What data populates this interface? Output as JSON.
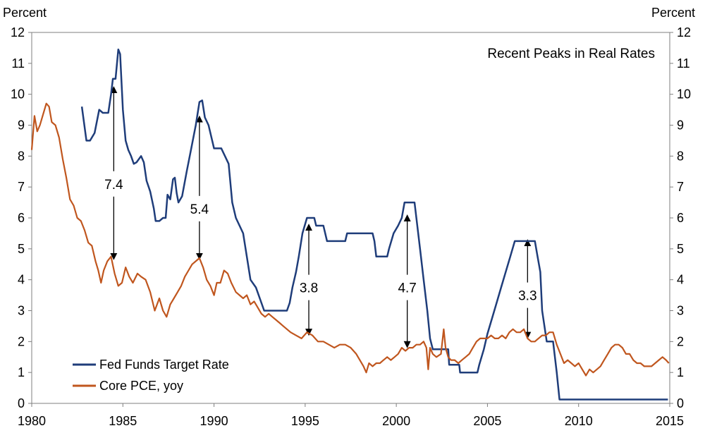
{
  "chart_data": {
    "type": "line",
    "title": "Recent Peaks in Real Rates",
    "ylabel_left": "Percent",
    "ylabel_right": "Percent",
    "xlim": [
      1980,
      2015
    ],
    "ylim": [
      0,
      12
    ],
    "x_ticks": [
      "1980",
      "1985",
      "1990",
      "1995",
      "2000",
      "2005",
      "2010",
      "2015"
    ],
    "y_ticks": [
      "0",
      "1",
      "2",
      "3",
      "4",
      "5",
      "6",
      "7",
      "8",
      "9",
      "10",
      "11",
      "12"
    ],
    "legend_position": "bottom-left",
    "series": [
      {
        "name": "Fed Funds Target Rate",
        "color": "#1F3D7A",
        "points": [
          [
            1982.75,
            9.6
          ],
          [
            1983.0,
            8.5
          ],
          [
            1983.2,
            8.5
          ],
          [
            1983.45,
            8.75
          ],
          [
            1983.7,
            9.5
          ],
          [
            1983.9,
            9.4
          ],
          [
            1984.2,
            9.4
          ],
          [
            1984.35,
            10.0
          ],
          [
            1984.45,
            10.5
          ],
          [
            1984.6,
            10.5
          ],
          [
            1984.75,
            11.45
          ],
          [
            1984.85,
            11.3
          ],
          [
            1985.0,
            9.5
          ],
          [
            1985.15,
            8.5
          ],
          [
            1985.3,
            8.2
          ],
          [
            1985.45,
            8.0
          ],
          [
            1985.6,
            7.75
          ],
          [
            1985.75,
            7.8
          ],
          [
            1986.0,
            8.0
          ],
          [
            1986.15,
            7.8
          ],
          [
            1986.3,
            7.2
          ],
          [
            1986.5,
            6.85
          ],
          [
            1986.7,
            6.3
          ],
          [
            1986.8,
            5.9
          ],
          [
            1987.0,
            5.9
          ],
          [
            1987.2,
            6.0
          ],
          [
            1987.35,
            6.0
          ],
          [
            1987.45,
            6.75
          ],
          [
            1987.6,
            6.6
          ],
          [
            1987.75,
            7.25
          ],
          [
            1987.85,
            7.3
          ],
          [
            1987.95,
            6.8
          ],
          [
            1988.05,
            6.5
          ],
          [
            1988.25,
            6.7
          ],
          [
            1988.5,
            7.5
          ],
          [
            1988.75,
            8.25
          ],
          [
            1989.0,
            9.0
          ],
          [
            1989.2,
            9.75
          ],
          [
            1989.35,
            9.8
          ],
          [
            1989.5,
            9.25
          ],
          [
            1989.7,
            9.0
          ],
          [
            1989.9,
            8.5
          ],
          [
            1990.0,
            8.25
          ],
          [
            1990.4,
            8.25
          ],
          [
            1990.6,
            8.0
          ],
          [
            1990.8,
            7.75
          ],
          [
            1991.0,
            6.5
          ],
          [
            1991.2,
            6.0
          ],
          [
            1991.4,
            5.75
          ],
          [
            1991.6,
            5.5
          ],
          [
            1991.8,
            4.75
          ],
          [
            1992.0,
            4.0
          ],
          [
            1992.3,
            3.75
          ],
          [
            1992.6,
            3.25
          ],
          [
            1992.75,
            3.0
          ],
          [
            1994.0,
            3.0
          ],
          [
            1994.15,
            3.25
          ],
          [
            1994.3,
            3.75
          ],
          [
            1994.5,
            4.25
          ],
          [
            1994.65,
            4.75
          ],
          [
            1994.85,
            5.5
          ],
          [
            1995.1,
            6.0
          ],
          [
            1995.5,
            6.0
          ],
          [
            1995.6,
            5.75
          ],
          [
            1996.0,
            5.75
          ],
          [
            1996.1,
            5.5
          ],
          [
            1996.2,
            5.25
          ],
          [
            1997.2,
            5.25
          ],
          [
            1997.3,
            5.5
          ],
          [
            1998.7,
            5.5
          ],
          [
            1998.8,
            5.25
          ],
          [
            1998.9,
            4.75
          ],
          [
            1999.5,
            4.75
          ],
          [
            1999.6,
            5.0
          ],
          [
            1999.85,
            5.5
          ],
          [
            2000.1,
            5.75
          ],
          [
            2000.3,
            6.0
          ],
          [
            2000.45,
            6.5
          ],
          [
            2001.0,
            6.5
          ],
          [
            2001.1,
            6.0
          ],
          [
            2001.3,
            5.0
          ],
          [
            2001.5,
            4.0
          ],
          [
            2001.7,
            3.0
          ],
          [
            2001.85,
            2.1
          ],
          [
            2002.0,
            1.75
          ],
          [
            2002.85,
            1.75
          ],
          [
            2002.9,
            1.25
          ],
          [
            2003.45,
            1.25
          ],
          [
            2003.5,
            1.0
          ],
          [
            2004.45,
            1.0
          ],
          [
            2004.55,
            1.25
          ],
          [
            2004.8,
            1.75
          ],
          [
            2005.0,
            2.25
          ],
          [
            2005.25,
            2.75
          ],
          [
            2005.5,
            3.25
          ],
          [
            2005.75,
            3.75
          ],
          [
            2006.0,
            4.25
          ],
          [
            2006.25,
            4.75
          ],
          [
            2006.5,
            5.25
          ],
          [
            2007.6,
            5.25
          ],
          [
            2007.75,
            4.75
          ],
          [
            2007.9,
            4.25
          ],
          [
            2008.0,
            3.0
          ],
          [
            2008.25,
            2.0
          ],
          [
            2008.6,
            2.0
          ],
          [
            2008.8,
            1.0
          ],
          [
            2008.95,
            0.125
          ],
          [
            2014.9,
            0.125
          ]
        ]
      },
      {
        "name": "Core PCE, yoy",
        "color": "#C0561E",
        "points": [
          [
            1980.0,
            8.2
          ],
          [
            1980.15,
            9.3
          ],
          [
            1980.3,
            8.8
          ],
          [
            1980.45,
            9.0
          ],
          [
            1980.6,
            9.3
          ],
          [
            1980.8,
            9.7
          ],
          [
            1980.95,
            9.6
          ],
          [
            1981.1,
            9.1
          ],
          [
            1981.3,
            9.0
          ],
          [
            1981.5,
            8.6
          ],
          [
            1981.7,
            7.9
          ],
          [
            1981.9,
            7.3
          ],
          [
            1982.1,
            6.6
          ],
          [
            1982.3,
            6.4
          ],
          [
            1982.5,
            6.0
          ],
          [
            1982.7,
            5.9
          ],
          [
            1982.9,
            5.6
          ],
          [
            1983.1,
            5.2
          ],
          [
            1983.3,
            5.1
          ],
          [
            1983.5,
            4.6
          ],
          [
            1983.65,
            4.3
          ],
          [
            1983.8,
            3.9
          ],
          [
            1983.95,
            4.3
          ],
          [
            1984.15,
            4.6
          ],
          [
            1984.35,
            4.75
          ],
          [
            1984.55,
            4.2
          ],
          [
            1984.75,
            3.8
          ],
          [
            1984.95,
            3.9
          ],
          [
            1985.15,
            4.4
          ],
          [
            1985.35,
            4.1
          ],
          [
            1985.55,
            3.9
          ],
          [
            1985.8,
            4.2
          ],
          [
            1986.0,
            4.1
          ],
          [
            1986.25,
            4.0
          ],
          [
            1986.5,
            3.6
          ],
          [
            1986.75,
            3.0
          ],
          [
            1987.0,
            3.4
          ],
          [
            1987.2,
            3.0
          ],
          [
            1987.4,
            2.8
          ],
          [
            1987.6,
            3.2
          ],
          [
            1987.8,
            3.4
          ],
          [
            1988.0,
            3.6
          ],
          [
            1988.2,
            3.8
          ],
          [
            1988.4,
            4.1
          ],
          [
            1988.6,
            4.3
          ],
          [
            1988.8,
            4.5
          ],
          [
            1989.0,
            4.6
          ],
          [
            1989.2,
            4.7
          ],
          [
            1989.4,
            4.4
          ],
          [
            1989.6,
            4.0
          ],
          [
            1989.8,
            3.8
          ],
          [
            1990.0,
            3.5
          ],
          [
            1990.15,
            3.9
          ],
          [
            1990.35,
            3.9
          ],
          [
            1990.55,
            4.3
          ],
          [
            1990.75,
            4.2
          ],
          [
            1990.95,
            3.9
          ],
          [
            1991.2,
            3.6
          ],
          [
            1991.4,
            3.5
          ],
          [
            1991.6,
            3.4
          ],
          [
            1991.8,
            3.5
          ],
          [
            1992.0,
            3.2
          ],
          [
            1992.2,
            3.3
          ],
          [
            1992.4,
            3.1
          ],
          [
            1992.6,
            2.9
          ],
          [
            1992.8,
            2.8
          ],
          [
            1993.0,
            2.9
          ],
          [
            1993.2,
            2.8
          ],
          [
            1993.4,
            2.7
          ],
          [
            1993.6,
            2.6
          ],
          [
            1993.8,
            2.5
          ],
          [
            1994.0,
            2.4
          ],
          [
            1994.2,
            2.3
          ],
          [
            1994.5,
            2.2
          ],
          [
            1994.8,
            2.1
          ],
          [
            1995.1,
            2.3
          ],
          [
            1995.4,
            2.2
          ],
          [
            1995.7,
            2.0
          ],
          [
            1996.0,
            2.0
          ],
          [
            1996.3,
            1.9
          ],
          [
            1996.6,
            1.8
          ],
          [
            1996.9,
            1.9
          ],
          [
            1997.2,
            1.9
          ],
          [
            1997.5,
            1.8
          ],
          [
            1997.8,
            1.6
          ],
          [
            1998.0,
            1.4
          ],
          [
            1998.2,
            1.2
          ],
          [
            1998.35,
            1.0
          ],
          [
            1998.5,
            1.3
          ],
          [
            1998.7,
            1.2
          ],
          [
            1998.9,
            1.3
          ],
          [
            1999.1,
            1.3
          ],
          [
            1999.3,
            1.4
          ],
          [
            1999.5,
            1.5
          ],
          [
            1999.7,
            1.4
          ],
          [
            1999.9,
            1.5
          ],
          [
            2000.1,
            1.6
          ],
          [
            2000.3,
            1.8
          ],
          [
            2000.5,
            1.7
          ],
          [
            2000.7,
            1.8
          ],
          [
            2000.9,
            1.8
          ],
          [
            2001.1,
            1.9
          ],
          [
            2001.3,
            1.9
          ],
          [
            2001.5,
            2.0
          ],
          [
            2001.65,
            1.8
          ],
          [
            2001.75,
            1.1
          ],
          [
            2001.85,
            1.8
          ],
          [
            2002.0,
            1.6
          ],
          [
            2002.2,
            1.5
          ],
          [
            2002.45,
            1.6
          ],
          [
            2002.6,
            2.4
          ],
          [
            2002.7,
            1.8
          ],
          [
            2002.85,
            1.5
          ],
          [
            2003.0,
            1.4
          ],
          [
            2003.2,
            1.4
          ],
          [
            2003.4,
            1.3
          ],
          [
            2003.6,
            1.4
          ],
          [
            2003.8,
            1.5
          ],
          [
            2004.0,
            1.6
          ],
          [
            2004.2,
            1.8
          ],
          [
            2004.4,
            2.0
          ],
          [
            2004.6,
            2.1
          ],
          [
            2004.8,
            2.1
          ],
          [
            2005.0,
            2.1
          ],
          [
            2005.2,
            2.2
          ],
          [
            2005.4,
            2.1
          ],
          [
            2005.6,
            2.1
          ],
          [
            2005.8,
            2.2
          ],
          [
            2006.0,
            2.1
          ],
          [
            2006.2,
            2.3
          ],
          [
            2006.4,
            2.4
          ],
          [
            2006.6,
            2.3
          ],
          [
            2006.8,
            2.3
          ],
          [
            2007.0,
            2.4
          ],
          [
            2007.2,
            2.1
          ],
          [
            2007.4,
            2.0
          ],
          [
            2007.6,
            2.0
          ],
          [
            2007.8,
            2.1
          ],
          [
            2008.0,
            2.2
          ],
          [
            2008.2,
            2.2
          ],
          [
            2008.4,
            2.3
          ],
          [
            2008.6,
            2.3
          ],
          [
            2008.8,
            1.9
          ],
          [
            2009.0,
            1.6
          ],
          [
            2009.2,
            1.3
          ],
          [
            2009.4,
            1.4
          ],
          [
            2009.6,
            1.3
          ],
          [
            2009.8,
            1.2
          ],
          [
            2010.0,
            1.3
          ],
          [
            2010.2,
            1.1
          ],
          [
            2010.4,
            0.9
          ],
          [
            2010.6,
            1.1
          ],
          [
            2010.8,
            1.0
          ],
          [
            2011.0,
            1.1
          ],
          [
            2011.2,
            1.2
          ],
          [
            2011.4,
            1.4
          ],
          [
            2011.6,
            1.6
          ],
          [
            2011.8,
            1.8
          ],
          [
            2012.0,
            1.9
          ],
          [
            2012.2,
            1.9
          ],
          [
            2012.4,
            1.8
          ],
          [
            2012.6,
            1.6
          ],
          [
            2012.8,
            1.6
          ],
          [
            2013.0,
            1.4
          ],
          [
            2013.2,
            1.3
          ],
          [
            2013.4,
            1.3
          ],
          [
            2013.6,
            1.2
          ],
          [
            2013.8,
            1.2
          ],
          [
            2014.0,
            1.2
          ],
          [
            2014.2,
            1.3
          ],
          [
            2014.4,
            1.4
          ],
          [
            2014.6,
            1.5
          ],
          [
            2014.8,
            1.4
          ],
          [
            2014.95,
            1.3
          ]
        ]
      }
    ],
    "annotations": [
      {
        "label": "7.4",
        "x": 1984.5,
        "y_top": 10.15,
        "y_bottom": 4.75,
        "label_y": 7.1
      },
      {
        "label": "5.4",
        "x": 1989.2,
        "y_top": 9.2,
        "y_bottom": 4.75,
        "label_y": 6.3
      },
      {
        "label": "3.8",
        "x": 1995.2,
        "y_top": 5.7,
        "y_bottom": 2.3,
        "label_y": 3.75
      },
      {
        "label": "4.7",
        "x": 2000.6,
        "y_top": 6.0,
        "y_bottom": 1.9,
        "label_y": 3.75
      },
      {
        "label": "3.3",
        "x": 2007.2,
        "y_top": 5.2,
        "y_bottom": 2.2,
        "label_y": 3.5
      }
    ]
  }
}
